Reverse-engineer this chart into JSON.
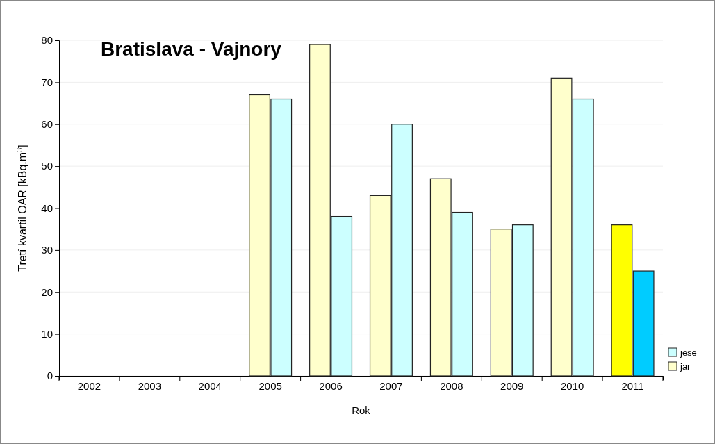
{
  "chart_data": {
    "type": "bar",
    "title": "Bratislava - Vajnory",
    "xlabel": "Rok",
    "ylabel": "Tretí kvartil OAR [kBq.m$^{3}$]",
    "categories": [
      "2002",
      "2003",
      "2004",
      "2005",
      "2006",
      "2007",
      "2008",
      "2009",
      "2010",
      "2011"
    ],
    "series": [
      {
        "name": "jar",
        "color": "#ffffcc",
        "colors": [
          null,
          null,
          null,
          "#ffffcc",
          "#ffffcc",
          "#ffffcc",
          "#ffffcc",
          "#ffffcc",
          "#ffffcc",
          "#ffff00"
        ],
        "values": [
          null,
          null,
          null,
          67,
          79,
          43,
          47,
          35,
          71,
          36
        ]
      },
      {
        "name": "jese",
        "color": "#ccffff",
        "colors": [
          null,
          null,
          null,
          "#ccffff",
          "#ccffff",
          "#ccffff",
          "#ccffff",
          "#ccffff",
          "#ccffff",
          "#00ccff"
        ],
        "values": [
          null,
          null,
          null,
          66,
          38,
          60,
          39,
          36,
          66,
          25
        ]
      }
    ],
    "ylim": [
      0,
      80
    ],
    "yticks": [
      0,
      10,
      20,
      30,
      40,
      50,
      60,
      70,
      80
    ],
    "grid": "y",
    "legend": "bottom right"
  }
}
